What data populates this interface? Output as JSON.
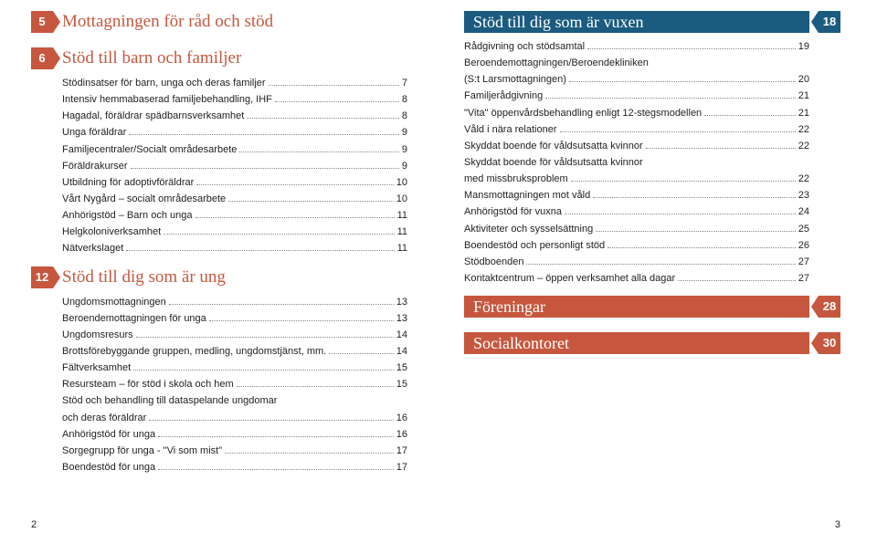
{
  "colors": {
    "red": "#c6573e",
    "blue": "#1b5b80",
    "text": "#222222",
    "dots": "#888888"
  },
  "typography": {
    "body_font": "Arial",
    "heading_font": "Georgia",
    "body_size_pt": 11,
    "heading_size_pt": 19
  },
  "leftPage": {
    "pageNumber": "2",
    "sections": [
      {
        "badge": "5",
        "title": "Mottagningen för råd och stöd",
        "entries": []
      },
      {
        "badge": "6",
        "title": "Stöd till barn och familjer",
        "entries": [
          {
            "label": "Stödinsatser för barn, unga och deras familjer",
            "page": "7"
          },
          {
            "label": "Intensiv hemmabaserad familjebehandling, IHF",
            "page": "8"
          },
          {
            "label": "Hagadal, föräldrar spädbarnsverksamhet",
            "page": "8"
          },
          {
            "label": "Unga föräldrar",
            "page": "9"
          },
          {
            "label": "Familjecentraler/Socialt områdesarbete",
            "page": "9"
          },
          {
            "label": "Föräldrakurser",
            "page": "9"
          },
          {
            "label": "Utbildning för adoptivföräldrar",
            "page": "10"
          },
          {
            "label": "Vårt Nygård – socialt områdesarbete",
            "page": "10"
          },
          {
            "label": "Anhörigstöd – Barn och unga",
            "page": "11"
          },
          {
            "label": "Helgkoloniverksamhet",
            "page": "11"
          },
          {
            "label": "Nätverkslaget",
            "page": "11"
          }
        ]
      },
      {
        "badge": "12",
        "title": "Stöd till dig som är ung",
        "entries": [
          {
            "label": "Ungdomsmottagningen",
            "page": "13"
          },
          {
            "label": "Beroendemottagningen för unga",
            "page": "13"
          },
          {
            "label": "Ungdomsresurs",
            "page": "14"
          },
          {
            "label": "Brottsförebyggande gruppen, medling, ungdomstjänst, mm.",
            "page": "14"
          },
          {
            "label": "Fältverksamhet",
            "page": "15"
          },
          {
            "label": "Resursteam – för stöd i skola och hem",
            "page": "15"
          },
          {
            "label": "Stöd och behandling till dataspelande ungdomar",
            "page": ""
          },
          {
            "label": "och deras föräldrar",
            "page": "16"
          },
          {
            "label": "Anhörigstöd för unga",
            "page": "16"
          },
          {
            "label": "Sorgegrupp för unga - \"Vi som mist\"",
            "page": "17"
          },
          {
            "label": "Boendestöd för unga",
            "page": "17"
          }
        ]
      }
    ]
  },
  "rightPage": {
    "pageNumber": "3",
    "sections": [
      {
        "badge": "18",
        "style": "blue",
        "title": "Stöd till dig som är vuxen",
        "entries": [
          {
            "label": "Rådgivning och stödsamtal",
            "page": "19"
          },
          {
            "label": "Beroendemottagningen/Beroendekliniken",
            "page": ""
          },
          {
            "label": "(S:t Larsmottagningen)",
            "page": "20"
          },
          {
            "label": "Familjerådgivning",
            "page": "21"
          },
          {
            "label": "\"Vita\" öppenvårdsbehandling enligt 12-stegsmodellen",
            "page": "21"
          },
          {
            "label": "Våld i nära relationer",
            "page": "22"
          },
          {
            "label": "Skyddat boende för våldsutsatta kvinnor",
            "page": "22"
          },
          {
            "label": "Skyddat boende för våldsutsatta kvinnor",
            "page": ""
          },
          {
            "label": "med missbruksproblem",
            "page": "22"
          },
          {
            "label": "Mansmottagningen mot våld",
            "page": "23"
          },
          {
            "label": "Anhörigstöd för vuxna",
            "page": "24"
          },
          {
            "label": "Aktiviteter och sysselsättning",
            "page": "25"
          },
          {
            "label": "Boendestöd och personligt stöd",
            "page": "26"
          },
          {
            "label": "Stödboenden",
            "page": "27"
          },
          {
            "label": "Kontaktcentrum – öppen verksamhet alla dagar",
            "page": "27"
          }
        ]
      },
      {
        "badge": "28",
        "style": "red-bar",
        "title": "Föreningar",
        "entries": []
      },
      {
        "badge": "30",
        "style": "red-bar",
        "title": "Socialkontoret",
        "entries": []
      }
    ]
  }
}
